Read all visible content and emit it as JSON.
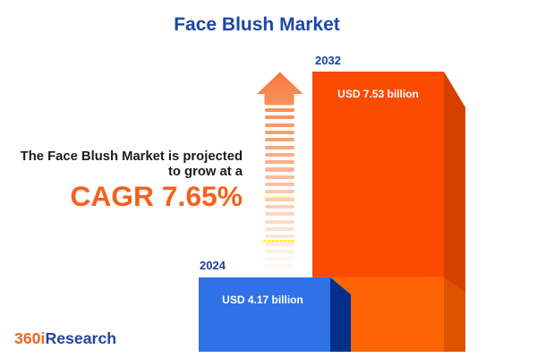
{
  "title": {
    "text": "Face Blush Market"
  },
  "tagline": {
    "line1": "The Face Blush Market is projected",
    "line2": "to grow at a",
    "cagr": "CAGR 7.65%"
  },
  "bars": [
    {
      "year": "2024",
      "value_label": "USD 4.17 billion"
    },
    {
      "year": "2032",
      "value_label": "USD 7.53 billion"
    }
  ],
  "logo": {
    "prefix": "360i",
    "suffix": "Research"
  },
  "icons": {
    "growth": "arrow-up-icon"
  },
  "colors": {
    "title_blue": "#1E46A3",
    "year_label_blue": "#1D3D99",
    "body_text": "#1C1C1C",
    "cagr_orange": "#F4611E",
    "logo_orange": "#F4641E",
    "logo_blue": "#24449F",
    "bar_2024_front": "#2F72E8",
    "bar_2024_side": "#04308C",
    "bar_2032_front_top": "#FB4A01",
    "bar_2032_front_bottom": "#FD6506",
    "bar_2032_side_top": "#D74100",
    "bar_2032_side_bottom": "#DD5300",
    "arrow_head_start": "#F5763B",
    "arrow_head_end": "#F8935C",
    "arrow_stripe": "#F78F55",
    "arrow_accent_yellow": "#FFF100"
  },
  "chart_data": {
    "type": "bar",
    "title": "Face Blush Market",
    "categories": [
      "2024",
      "2032"
    ],
    "values": [
      4.17,
      7.53
    ],
    "unit": "USD billion",
    "value_labels": [
      "USD 4.17 billion",
      "USD 7.53 billion"
    ],
    "annotation": "The Face Blush Market is projected to grow at a CAGR 7.65%",
    "cagr_percent": 7.65,
    "source_brand": "360iResearch",
    "legend": "none",
    "grid": false
  }
}
